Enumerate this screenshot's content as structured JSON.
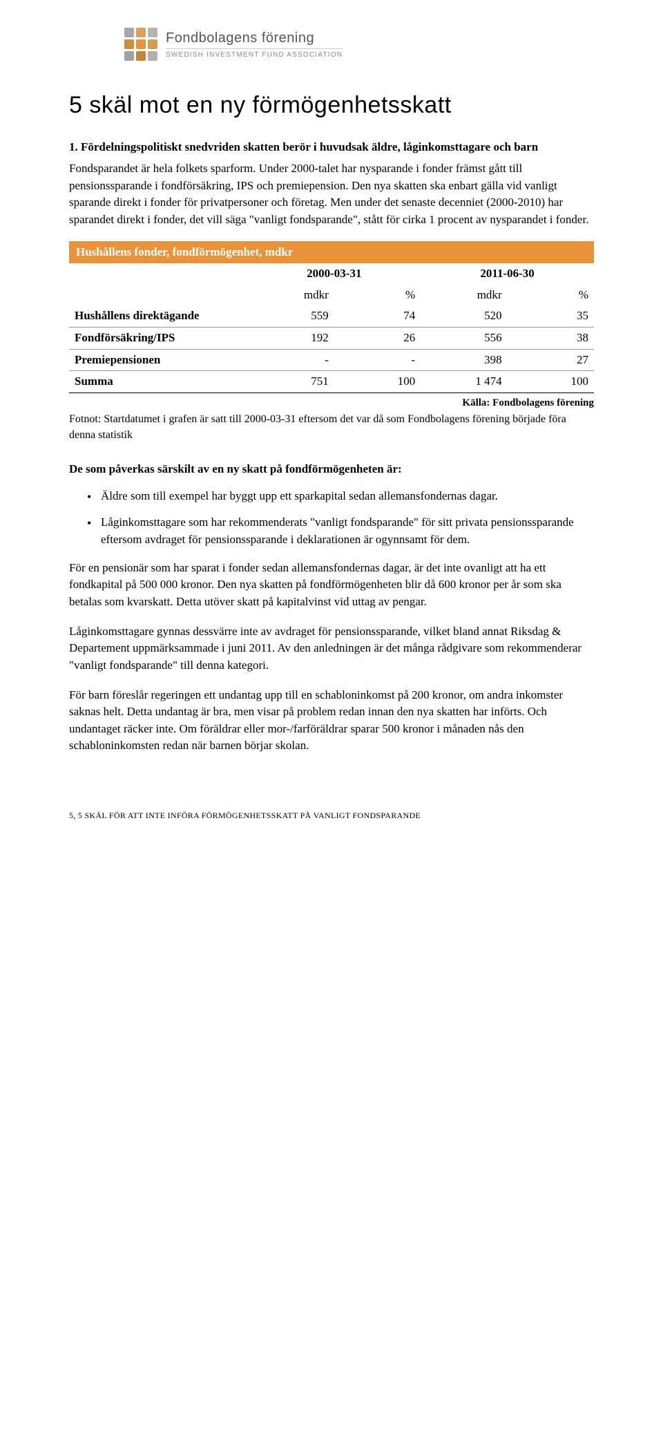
{
  "logo": {
    "title": "Fondbolagens förening",
    "subtitle": "SWEDISH INVESTMENT FUND ASSOCIATION",
    "dot_colors": [
      "#a7a7a7",
      "#d9a15b",
      "#b4b4b4",
      "#c88f3f",
      "#e8933a",
      "#d59a55",
      "#a0a0a0",
      "#c68535",
      "#b0b0b0"
    ]
  },
  "page_title": "5 skäl mot en ny förmögenhetsskatt",
  "section1_heading": "1. Fördelningspolitiskt snedvriden skatten berör i huvudsak äldre, låginkomsttagare och barn",
  "section1_body": "Fondsparandet är hela folkets sparform. Under 2000-talet har nysparande i fonder främst gått till pensionssparande i fondförsäkring, IPS och premiepension. Den nya skatten ska enbart gälla vid vanligt sparande direkt i fonder för privatpersoner och företag. Men under det senaste decenniet (2000-2010) har sparandet direkt i fonder, det vill säga \"vanligt fondsparande\", stått för cirka 1 procent av nysparandet i fonder.",
  "table": {
    "title": "Hushållens fonder, fondförmögenhet, mdkr",
    "dates": [
      "2000-03-31",
      "2011-06-30"
    ],
    "unit_headers": [
      "mdkr",
      "%",
      "mdkr",
      "%"
    ],
    "rows": [
      {
        "label": "Hushållens direktägande",
        "cells": [
          "559",
          "74",
          "520",
          "35"
        ]
      },
      {
        "label": "Fondförsäkring/IPS",
        "cells": [
          "192",
          "26",
          "556",
          "38"
        ]
      },
      {
        "label": "Premiepensionen",
        "cells": [
          "-",
          "-",
          "398",
          "27"
        ]
      },
      {
        "label": "Summa",
        "cells": [
          "751",
          "100",
          "1 474",
          "100"
        ]
      }
    ],
    "source": "Källa: Fondbolagens förening",
    "footnote": "Fotnot: Startdatumet i grafen är satt till 2000-03-31 eftersom det var då som Fondbolagens förening började föra denna statistik"
  },
  "affected_heading": "De som påverkas särskilt av en ny skatt på fondförmögenheten är:",
  "bullets": [
    "Äldre som till exempel har byggt upp ett sparkapital sedan allemansfondernas dagar.",
    "Låginkomsttagare som har rekommenderats \"vanligt fondsparande\" för sitt privata pensionssparande eftersom avdraget för pensionssparande i deklarationen är ogynnsamt för dem."
  ],
  "para_pension": "För en pensionär som har sparat i fonder sedan allemansfondernas dagar, är det inte ovanligt att ha ett fondkapital på 500 000 kronor. Den nya skatten på fondförmögenheten blir då 600 kronor per år som ska betalas som kvarskatt. Detta utöver skatt på kapitalvinst vid uttag av pengar.",
  "para_lowincome": "Låginkomsttagare gynnas dessvärre inte av avdraget för pensionssparande, vilket bland annat Riksdag & Departement uppmärksammade i juni 2011. Av den anledningen är det många rådgivare som rekommenderar \"vanligt fondsparande\" till denna kategori.",
  "para_children": "För barn föreslår regeringen ett undantag upp till en schabloninkomst på 200 kronor, om andra inkomster saknas helt. Detta undantag är bra, men visar på problem redan innan den nya skatten har införts. Och undantaget räcker inte. Om föräldrar eller mor-/farföräldrar sparar 500 kronor i månaden nås den schabloninkomsten redan när barnen börjar skolan.",
  "footer": {
    "page": "5,",
    "text": "5 SKÄL FÖR ATT INTE INFÖRA FÖRMÖGENHETSSKATT PÅ VANLIGT FONDSPARANDE"
  }
}
